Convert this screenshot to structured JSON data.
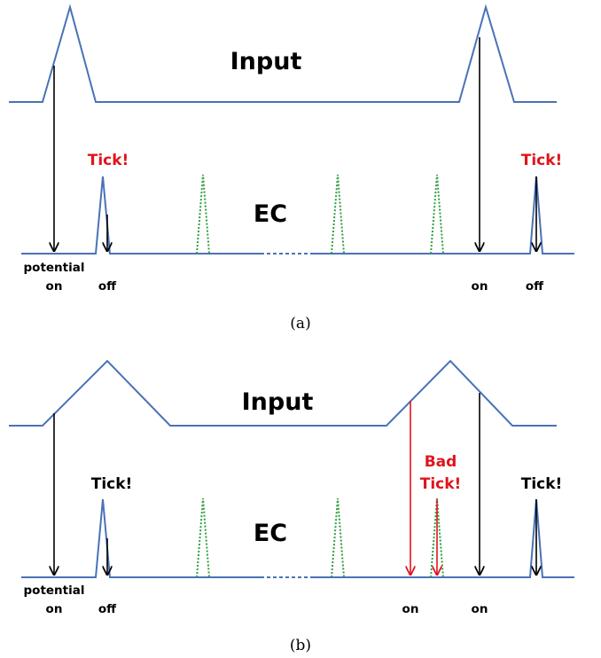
{
  "panel_a": {
    "input_label": "Input",
    "ec_label": "EC",
    "tick_left": "Tick!",
    "tick_right": "Tick!",
    "potential_label": "potential",
    "on_label_left": "on",
    "off_label_left": "off",
    "on_label_right": "on",
    "off_label_right": "off",
    "caption": "(a)",
    "tick_color": "#e0141c"
  },
  "panel_b": {
    "input_label": "Input",
    "ec_label": "EC",
    "tick_left": "Tick!",
    "bad_tick_line1": "Bad",
    "bad_tick_line2": "Tick!",
    "tick_right": "Tick!",
    "potential_label": "potential",
    "on_label_left": "on",
    "off_label_left": "off",
    "on_label_bad": "on",
    "on_label_right": "on",
    "caption": "(b)",
    "bad_tick_color": "#e0141c"
  },
  "colors": {
    "signal": "#4a72b8",
    "inactive_peak": "#2e9e3e",
    "arrow": "#000000",
    "bad_arrow": "#e0141c"
  }
}
